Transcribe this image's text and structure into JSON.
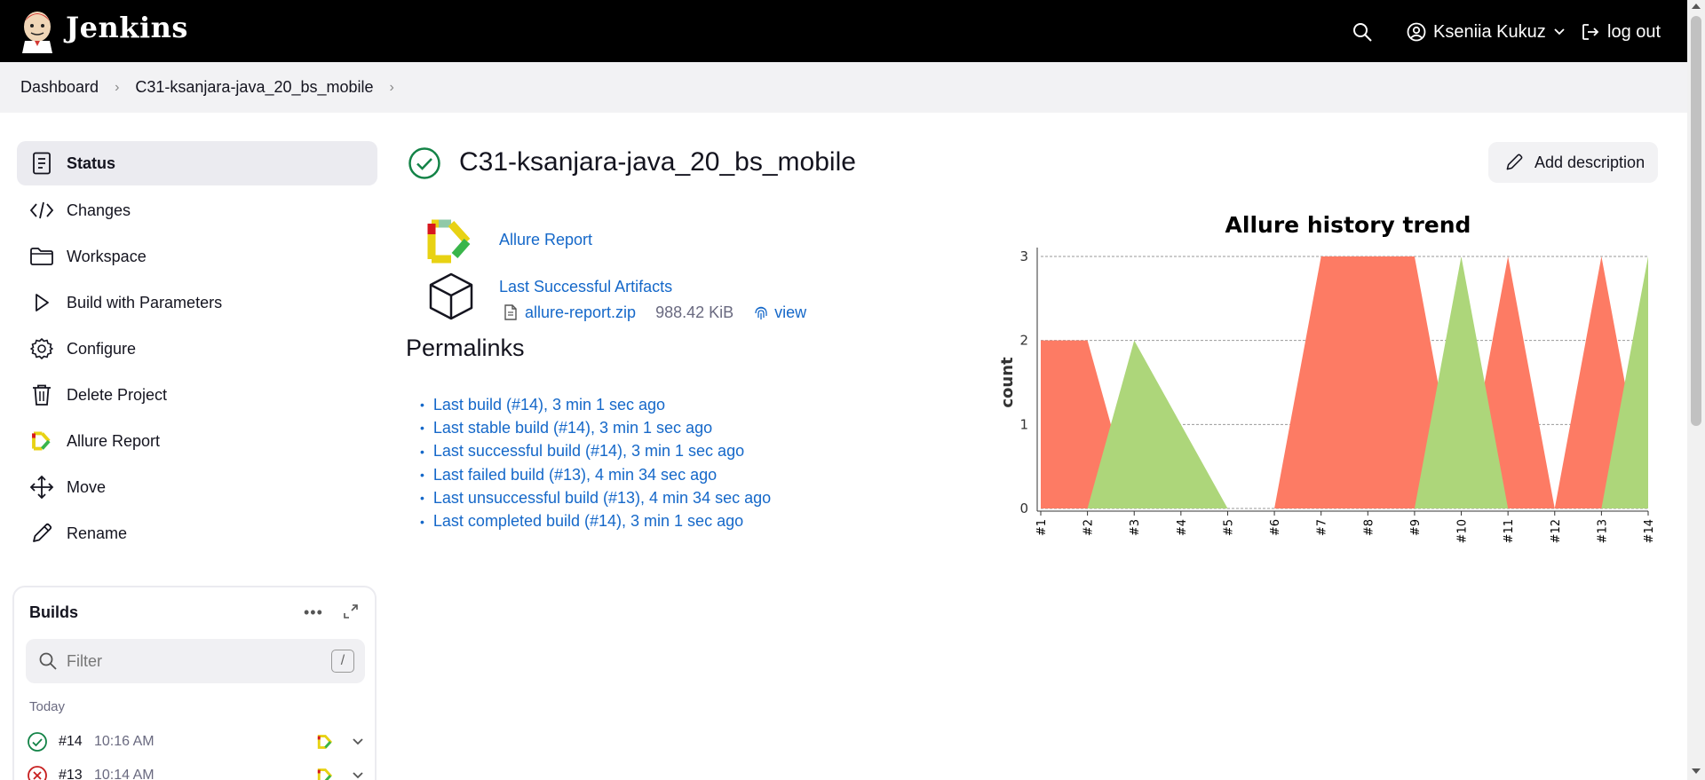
{
  "header": {
    "brand": "Jenkins",
    "user_name": "Kseniia Kukuz",
    "logout_label": "log out"
  },
  "breadcrumb": {
    "items": [
      "Dashboard",
      "C31-ksanjara-java_20_bs_mobile"
    ]
  },
  "sidebar": {
    "items": [
      {
        "label": "Status",
        "icon": "document-icon"
      },
      {
        "label": "Changes",
        "icon": "code-icon"
      },
      {
        "label": "Workspace",
        "icon": "folder-icon"
      },
      {
        "label": "Build with Parameters",
        "icon": "play-icon"
      },
      {
        "label": "Configure",
        "icon": "gear-icon"
      },
      {
        "label": "Delete Project",
        "icon": "trash-icon"
      },
      {
        "label": "Allure Report",
        "icon": "allure-icon"
      },
      {
        "label": "Move",
        "icon": "move-icon"
      },
      {
        "label": "Rename",
        "icon": "pencil-icon"
      }
    ]
  },
  "builds": {
    "title": "Builds",
    "more": "•••",
    "filter_placeholder": "Filter",
    "filter_shortcut": "/",
    "group_label": "Today",
    "rows": [
      {
        "number": "#14",
        "time": "10:16 AM",
        "status": "success"
      },
      {
        "number": "#13",
        "time": "10:14 AM",
        "status": "failed"
      }
    ]
  },
  "main": {
    "title": "C31-ksanjara-java_20_bs_mobile",
    "add_description": "Add description",
    "allure_link": "Allure Report",
    "last_successful_artifacts": "Last Successful Artifacts",
    "artifact_name": "allure-report.zip",
    "artifact_size": "988.42 KiB",
    "artifact_view": "view",
    "permalinks_title": "Permalinks",
    "permalinks": [
      "Last build (#14), 3 min 1 sec ago",
      "Last stable build (#14), 3 min 1 sec ago",
      "Last successful build (#14), 3 min 1 sec ago",
      "Last failed build (#13), 4 min 34 sec ago",
      "Last unsuccessful build (#13), 4 min 34 sec ago",
      "Last completed build (#14), 3 min 1 sec ago"
    ]
  },
  "colors": {
    "failed": "#fd7b64",
    "passed": "#add67a",
    "link": "#1568c9"
  },
  "chart_data": {
    "type": "area",
    "title": "Allure history trend",
    "ylabel": "count",
    "xlabel": "",
    "ylim": [
      0,
      3
    ],
    "yticks": [
      0,
      1,
      2,
      3
    ],
    "grid": true,
    "categories": [
      "#1",
      "#2",
      "#3",
      "#4",
      "#5",
      "#6",
      "#7",
      "#8",
      "#9",
      "#10",
      "#11",
      "#12",
      "#13",
      "#14"
    ],
    "series": [
      {
        "color": "#fd7b64",
        "values": [
          2,
          2,
          0,
          0,
          0,
          0,
          3,
          3,
          3,
          0,
          3,
          0,
          3,
          0
        ]
      },
      {
        "color": "#add67a",
        "values": [
          0,
          0,
          2,
          1,
          0,
          0,
          0,
          0,
          0,
          3,
          0,
          0,
          0,
          3
        ]
      }
    ]
  }
}
